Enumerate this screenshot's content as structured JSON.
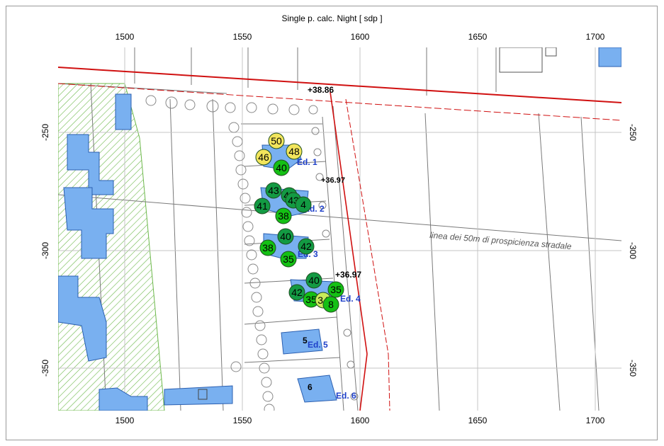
{
  "title": "Single p. calc. Night  [ sdp ]",
  "x_ticks": [
    "1500",
    "1550",
    "1600",
    "1650",
    "1700"
  ],
  "y_ticks": [
    "-250",
    "-300",
    "-350"
  ],
  "road_label": "linea dei 50m di prospicienza stradale",
  "elevation_labels": [
    "+38.86",
    "+36.97",
    "+36.97"
  ],
  "buildings": [
    {
      "name": "Ed. 1"
    },
    {
      "name": "Ed. 2"
    },
    {
      "name": "Ed. 3"
    },
    {
      "name": "Ed. 4"
    },
    {
      "name": "Ed. 5",
      "number": "5"
    },
    {
      "name": "Ed. 6",
      "number": "6"
    }
  ],
  "receivers": [
    {
      "value": "50",
      "level": "yellow"
    },
    {
      "value": "46",
      "level": "yellow"
    },
    {
      "value": "48",
      "level": "yellow"
    },
    {
      "value": "40",
      "level": "green"
    },
    {
      "value": "43",
      "level": "dark"
    },
    {
      "value": "43",
      "level": "dark"
    },
    {
      "value": "43",
      "level": "dark"
    },
    {
      "value": "41",
      "level": "dark"
    },
    {
      "value": "4",
      "level": "dark"
    },
    {
      "value": "38",
      "level": "green"
    },
    {
      "value": "40",
      "level": "dark"
    },
    {
      "value": "38",
      "level": "green"
    },
    {
      "value": "42",
      "level": "dark"
    },
    {
      "value": "35",
      "level": "green"
    },
    {
      "value": "40",
      "level": "dark"
    },
    {
      "value": "42",
      "level": "dark"
    },
    {
      "value": "35",
      "level": "green"
    },
    {
      "value": "35",
      "level": "green"
    },
    {
      "value": "34",
      "level": "lightgreen"
    },
    {
      "value": "8",
      "level": "green"
    }
  ],
  "colors": {
    "building_fill": "#79b0f0",
    "building_stroke": "#2b5fb0",
    "road_red": "#d01010",
    "hatch_green": "#6cb84a",
    "yellow": "#f2e55c",
    "green": "#14c014",
    "dark": "#139a43",
    "lightgreen": "#c8ec5a",
    "grid": "#bdbdbd"
  }
}
